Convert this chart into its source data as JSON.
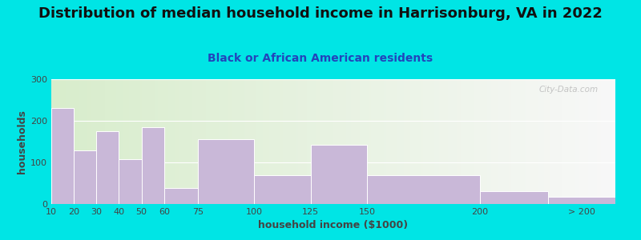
{
  "title": "Distribution of median household income in Harrisonburg, VA in 2022",
  "subtitle": "Black or African American residents",
  "xlabel": "household income ($1000)",
  "ylabel": "households",
  "bin_edges": [
    10,
    20,
    30,
    40,
    50,
    60,
    75,
    100,
    125,
    150,
    200,
    230,
    260
  ],
  "tick_labels": [
    "10",
    "20",
    "30",
    "40",
    "50",
    "60",
    "75",
    "100",
    "125",
    "150",
    "200",
    "> 200"
  ],
  "tick_positions": [
    10,
    20,
    30,
    40,
    50,
    60,
    75,
    100,
    125,
    150,
    200,
    245
  ],
  "values": [
    230,
    128,
    175,
    107,
    185,
    38,
    155,
    70,
    143,
    70,
    30,
    17
  ],
  "bar_color": "#c9b8d8",
  "bar_edge_color": "white",
  "background_outer": "#00e5e5",
  "background_plot_color1": "#d8edcc",
  "background_plot_color2": "#f8f8f8",
  "ylim": [
    0,
    300
  ],
  "yticks": [
    0,
    100,
    200,
    300
  ],
  "xlim": [
    10,
    260
  ],
  "watermark": "City-Data.com",
  "title_fontsize": 13,
  "subtitle_fontsize": 10,
  "axis_label_fontsize": 9,
  "tick_fontsize": 8,
  "title_color": "#111111",
  "subtitle_color": "#2244bb",
  "axis_label_color": "#444444",
  "watermark_color": "#bbbbbb"
}
